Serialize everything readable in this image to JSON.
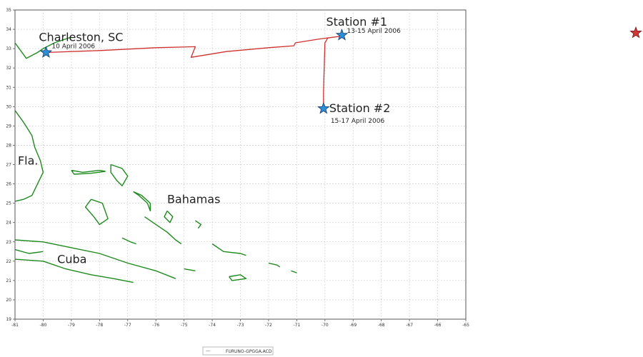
{
  "map": {
    "xlim": [
      -81,
      -65
    ],
    "ylim": [
      19,
      35
    ],
    "grid": true,
    "x_ticks": [
      -81,
      -80,
      -79,
      -78,
      -77,
      -76,
      -75,
      -74,
      -73,
      -72,
      -71,
      -70,
      -69,
      -68,
      -67,
      -66,
      -65
    ],
    "y_ticks": [
      19,
      20,
      21,
      22,
      23,
      24,
      25,
      26,
      27,
      28,
      29,
      30,
      31,
      32,
      33,
      34,
      35
    ],
    "track_color": "#d03030",
    "coast_color": "#1e8a1e",
    "station_marker_color": "#2a8fd8",
    "legend_marker_color": "#d03838"
  },
  "stations": [
    {
      "name": "Charleston, SC",
      "date": "10 April 2006",
      "lon": -79.9,
      "lat": 32.8
    },
    {
      "name": "Station #1",
      "date": "13-15 April 2006",
      "lon": -69.4,
      "lat": 33.7
    },
    {
      "name": "Station #2",
      "date": "15-17 April 2006",
      "lon": -70.05,
      "lat": 29.9
    }
  ],
  "regions": [
    {
      "name": "Fla.",
      "lon": -80.9,
      "lat": 27.0
    },
    {
      "name": "Bahamas",
      "lon": -75.6,
      "lat": 25.0
    },
    {
      "name": "Cuba",
      "lon": -79.5,
      "lat": 21.9
    }
  ],
  "legend": {
    "label": "FURUNO-GPGGA.ACD"
  }
}
